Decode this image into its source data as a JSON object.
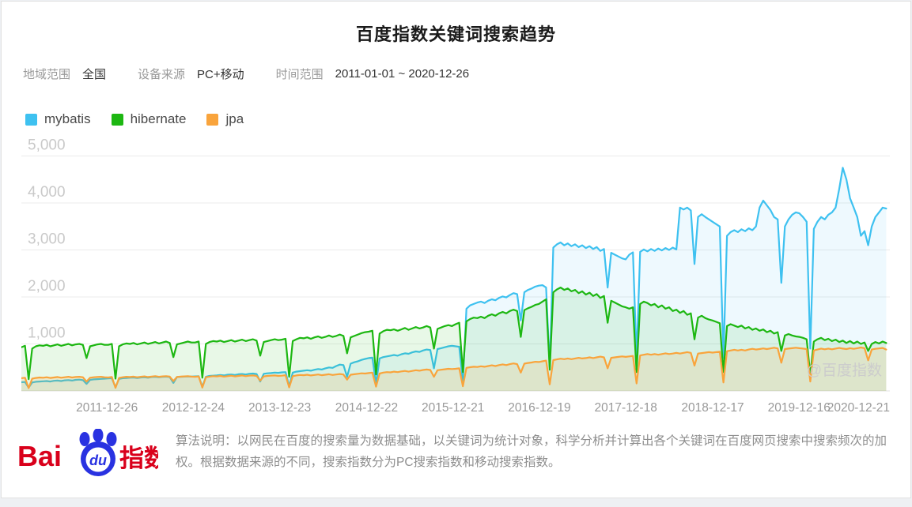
{
  "page": {
    "title": "百度指数关键词搜索趋势"
  },
  "filters": {
    "region_label": "地域范围",
    "region_value": "全国",
    "device_label": "设备来源",
    "device_value": "PC+移动",
    "time_label": "时间范围",
    "time_value": "2011-01-01 ~ 2020-12-26"
  },
  "watermark": "@百度指数",
  "footer": {
    "logo": {
      "bai": "Bai",
      "du": "du",
      "suffix": "指数"
    },
    "description": "算法说明：以网民在百度的搜索量为数据基础，以关键词为统计对象，科学分析并计算出各个关键词在百度网页搜索中搜索频次的加权。根据数据来源的不同，搜索指数分为PC搜索指数和移动搜索指数。"
  },
  "chart_data": {
    "type": "line",
    "title": "百度指数关键词搜索趋势",
    "xlabel": "",
    "ylabel": "",
    "x_range": [
      2011,
      2021
    ],
    "x_start": 2011.0,
    "x_step": 0.0416667,
    "ylim": [
      0,
      5000
    ],
    "yticks": [
      1000,
      2000,
      3000,
      4000,
      5000
    ],
    "grid": true,
    "legend_position": "top-left",
    "xticks": [
      {
        "label": "2011-12-26",
        "t": 2011.985
      },
      {
        "label": "2012-12-24",
        "t": 2012.98
      },
      {
        "label": "2013-12-23",
        "t": 2013.975
      },
      {
        "label": "2014-12-22",
        "t": 2014.975
      },
      {
        "label": "2015-12-21",
        "t": 2015.97
      },
      {
        "label": "2016-12-19",
        "t": 2016.965
      },
      {
        "label": "2017-12-18",
        "t": 2017.96
      },
      {
        "label": "2018-12-17",
        "t": 2018.96
      },
      {
        "label": "2019-12-16",
        "t": 2019.955
      },
      {
        "label": "2020-12-21",
        "t": 2020.97
      }
    ],
    "series": [
      {
        "name": "mybatis",
        "color": "#3EC1F0",
        "fill_opacity": 0.09,
        "values": [
          185,
          190,
          70,
          180,
          195,
          200,
          205,
          210,
          200,
          215,
          220,
          210,
          225,
          230,
          220,
          235,
          240,
          230,
          150,
          235,
          245,
          250,
          255,
          260,
          265,
          270,
          80,
          255,
          270,
          275,
          280,
          285,
          275,
          285,
          290,
          280,
          295,
          300,
          290,
          300,
          305,
          295,
          170,
          295,
          300,
          305,
          310,
          305,
          310,
          315,
          90,
          300,
          320,
          325,
          330,
          340,
          330,
          345,
          350,
          340,
          355,
          360,
          350,
          365,
          370,
          360,
          200,
          365,
          375,
          380,
          390,
          385,
          395,
          400,
          100,
          390,
          410,
          420,
          430,
          440,
          430,
          450,
          465,
          455,
          480,
          500,
          490,
          530,
          560,
          550,
          300,
          580,
          610,
          630,
          660,
          680,
          700,
          710,
          150,
          690,
          720,
          735,
          750,
          765,
          750,
          780,
          800,
          790,
          820,
          840,
          830,
          860,
          880,
          870,
          480,
          890,
          910,
          930,
          950,
          960,
          950,
          940,
          200,
          1750,
          1820,
          1850,
          1880,
          1900,
          1870,
          1920,
          1950,
          1930,
          1980,
          2010,
          1990,
          2040,
          2080,
          2060,
          1500,
          2100,
          2150,
          2180,
          2220,
          2240,
          2250,
          2200,
          500,
          3050,
          3120,
          3160,
          3100,
          3140,
          3080,
          3120,
          3060,
          3100,
          3040,
          3080,
          3020,
          3060,
          2980,
          3020,
          2200,
          2940,
          2900,
          2860,
          2820,
          2800,
          2900,
          2950,
          700,
          2960,
          3010,
          2970,
          3020,
          2980,
          3030,
          2990,
          3040,
          3000,
          3050,
          3010,
          3900,
          3860,
          3900,
          3840,
          2700,
          3700,
          3760,
          3700,
          3650,
          3600,
          3550,
          3500,
          700,
          3300,
          3380,
          3420,
          3380,
          3440,
          3400,
          3460,
          3420,
          3500,
          3900,
          4050,
          3950,
          3850,
          3700,
          3650,
          2300,
          3500,
          3650,
          3750,
          3800,
          3780,
          3700,
          3600,
          900,
          3450,
          3600,
          3700,
          3650,
          3750,
          3800,
          3900,
          4300,
          4750,
          4500,
          4100,
          3900,
          3700,
          3300,
          3400,
          3100,
          3500,
          3700,
          3800,
          3900,
          3880
        ]
      },
      {
        "name": "hibernate",
        "color": "#1DB712",
        "fill_opacity": 0.1,
        "values": [
          930,
          960,
          250,
          900,
          950,
          970,
          960,
          980,
          950,
          970,
          990,
          960,
          980,
          1000,
          970,
          990,
          1000,
          980,
          700,
          950,
          970,
          990,
          1000,
          980,
          980,
          1000,
          260,
          950,
          990,
          1010,
          1000,
          1020,
          990,
          1010,
          1030,
          1000,
          1020,
          1040,
          1010,
          1030,
          1050,
          1020,
          720,
          990,
          1010,
          1030,
          1050,
          1030,
          1030,
          1050,
          280,
          1000,
          1040,
          1060,
          1050,
          1070,
          1040,
          1060,
          1080,
          1050,
          1070,
          1090,
          1060,
          1080,
          1100,
          1070,
          750,
          1040,
          1060,
          1080,
          1100,
          1080,
          1090,
          1110,
          300,
          1060,
          1100,
          1130,
          1120,
          1140,
          1110,
          1140,
          1160,
          1130,
          1150,
          1180,
          1150,
          1170,
          1200,
          1170,
          800,
          1140,
          1170,
          1200,
          1230,
          1250,
          1260,
          1280,
          350,
          1220,
          1270,
          1300,
          1290,
          1310,
          1280,
          1310,
          1340,
          1300,
          1330,
          1360,
          1330,
          1350,
          1380,
          1350,
          900,
          1320,
          1350,
          1380,
          1400,
          1380,
          1420,
          1450,
          400,
          1480,
          1530,
          1560,
          1550,
          1580,
          1550,
          1600,
          1630,
          1600,
          1650,
          1680,
          1650,
          1700,
          1730,
          1700,
          1150,
          1720,
          1760,
          1790,
          1830,
          1850,
          1900,
          1950,
          450,
          2100,
          2160,
          2200,
          2150,
          2180,
          2120,
          2150,
          2080,
          2120,
          2050,
          2090,
          2020,
          2060,
          1980,
          2020,
          1450,
          1920,
          1880,
          1840,
          1800,
          1780,
          1750,
          1780,
          400,
          1850,
          1900,
          1870,
          1820,
          1850,
          1780,
          1820,
          1750,
          1780,
          1700,
          1730,
          1660,
          1700,
          1620,
          1650,
          1100,
          1560,
          1600,
          1550,
          1520,
          1500,
          1470,
          1440,
          400,
          1380,
          1420,
          1390,
          1360,
          1390,
          1330,
          1360,
          1300,
          1330,
          1280,
          1310,
          1250,
          1280,
          1220,
          1250,
          850,
          1180,
          1210,
          1180,
          1160,
          1150,
          1130,
          1100,
          350,
          1050,
          1100,
          1130,
          1080,
          1110,
          1060,
          1090,
          1040,
          1070,
          1020,
          1060,
          1010,
          1050,
          1000,
          1030,
          850,
          1000,
          1040,
          1010,
          1050,
          1020
        ]
      },
      {
        "name": "jpa",
        "color": "#F9A43C",
        "fill_opacity": 0.16,
        "values": [
          270,
          280,
          60,
          260,
          275,
          285,
          280,
          290,
          275,
          285,
          295,
          280,
          290,
          300,
          285,
          295,
          300,
          290,
          200,
          280,
          290,
          295,
          300,
          290,
          285,
          295,
          65,
          275,
          290,
          300,
          295,
          305,
          290,
          300,
          310,
          295,
          305,
          315,
          300,
          310,
          315,
          305,
          210,
          295,
          305,
          310,
          315,
          305,
          300,
          310,
          70,
          290,
          305,
          315,
          310,
          320,
          305,
          315,
          325,
          310,
          320,
          330,
          315,
          325,
          330,
          320,
          220,
          310,
          320,
          325,
          330,
          320,
          325,
          335,
          75,
          315,
          330,
          340,
          335,
          345,
          330,
          340,
          350,
          335,
          345,
          355,
          340,
          350,
          360,
          350,
          240,
          345,
          355,
          365,
          375,
          370,
          380,
          390,
          90,
          370,
          390,
          400,
          395,
          410,
          400,
          415,
          425,
          410,
          425,
          440,
          430,
          445,
          455,
          445,
          300,
          440,
          450,
          460,
          470,
          465,
          470,
          480,
          100,
          490,
          505,
          515,
          510,
          525,
          515,
          530,
          545,
          530,
          550,
          565,
          550,
          570,
          585,
          570,
          390,
          580,
          595,
          605,
          620,
          615,
          630,
          645,
          140,
          655,
          670,
          685,
          675,
          690,
          675,
          690,
          705,
          690,
          700,
          715,
          700,
          715,
          730,
          715,
          480,
          705,
          715,
          725,
          735,
          725,
          735,
          745,
          160,
          755,
          770,
          785,
          770,
          785,
          770,
          785,
          800,
          785,
          795,
          810,
          795,
          810,
          825,
          810,
          540,
          795,
          805,
          815,
          825,
          815,
          825,
          835,
          180,
          845,
          860,
          875,
          860,
          875,
          860,
          880,
          895,
          880,
          890,
          905,
          890,
          905,
          920,
          905,
          600,
          890,
          900,
          910,
          920,
          910,
          900,
          890,
          200,
          860,
          880,
          900,
          885,
          900,
          885,
          900,
          915,
          900,
          890,
          910,
          895,
          910,
          925,
          910,
          650,
          880,
          895,
          905,
          915,
          880
        ]
      }
    ]
  }
}
